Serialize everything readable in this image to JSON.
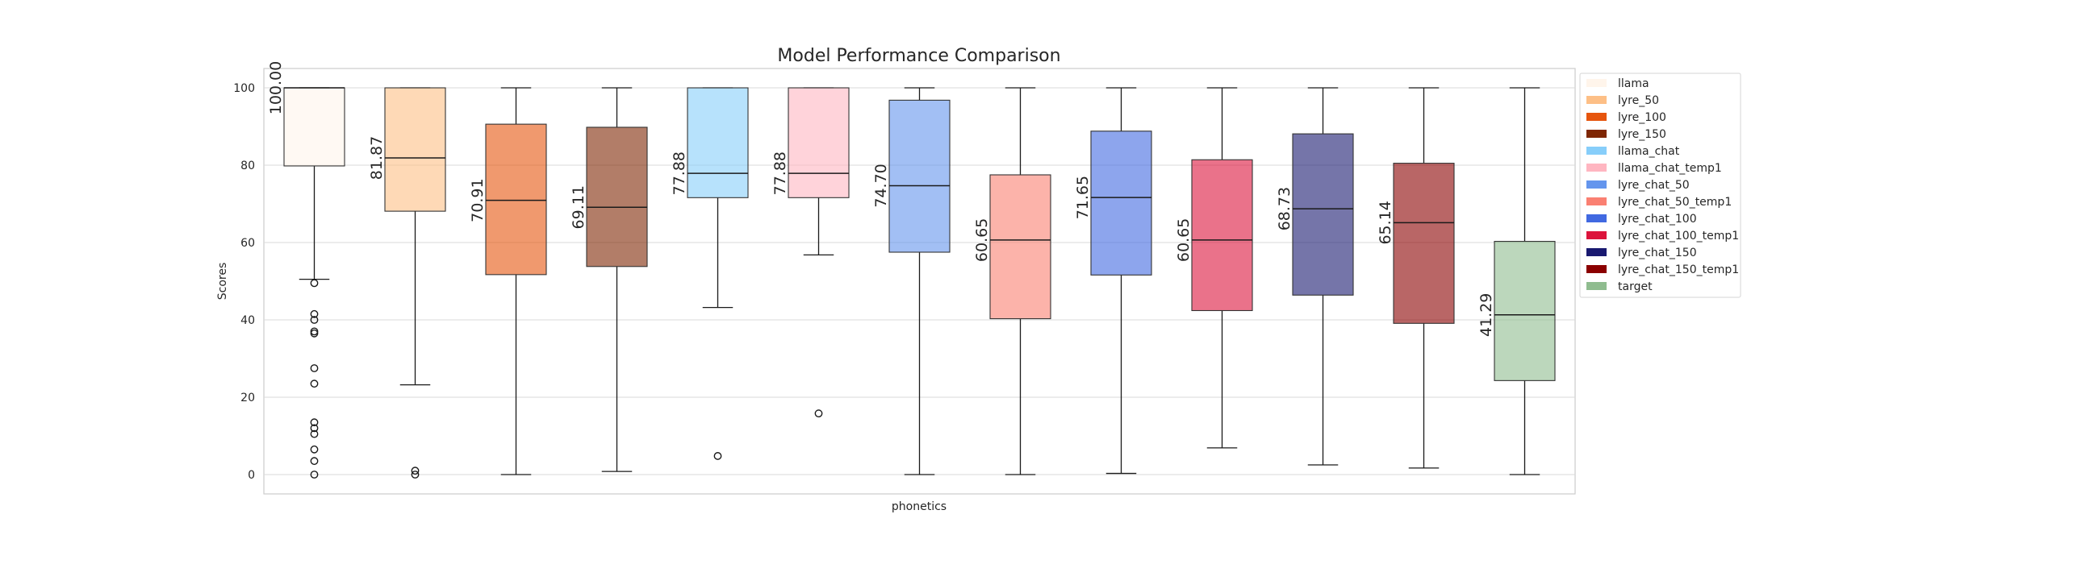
{
  "chart_data": {
    "type": "box",
    "title": "Model Performance Comparison",
    "xlabel": "phonetics",
    "ylabel": "Scores",
    "ylim": [
      -5,
      105
    ],
    "yticks": [
      0,
      20,
      40,
      60,
      80,
      100
    ],
    "grid": true,
    "legend_position": "right, outside plot",
    "series": [
      {
        "name": "llama",
        "color": "#fff5eb",
        "q1": 79.8,
        "median": 100.0,
        "q3": 100.0,
        "whisker_low": 50.5,
        "whisker_high": 100.0,
        "outliers": [
          49.5,
          41.5,
          40.0,
          37.0,
          36.5,
          27.5,
          23.5,
          13.5,
          12.0,
          10.5,
          6.5,
          3.5,
          0.0
        ],
        "label": "100.00"
      },
      {
        "name": "lyre_50",
        "color": "#fdbf86",
        "q1": 68.1,
        "median": 81.87,
        "q3": 100.0,
        "whisker_low": 23.2,
        "whisker_high": 100.0,
        "outliers": [
          1.0,
          0.0
        ],
        "label": "81.87"
      },
      {
        "name": "lyre_100",
        "color": "#e6550d",
        "q1": 51.7,
        "median": 70.91,
        "q3": 90.6,
        "whisker_low": 0.0,
        "whisker_high": 100.0,
        "outliers": [],
        "label": "70.91"
      },
      {
        "name": "lyre_150",
        "color": "#7f2704",
        "q1": 53.8,
        "median": 69.11,
        "q3": 89.8,
        "whisker_low": 0.8,
        "whisker_high": 100.0,
        "outliers": [],
        "label": "69.11"
      },
      {
        "name": "llama_chat",
        "color": "#87cefa",
        "q1": 71.6,
        "median": 77.88,
        "q3": 100.0,
        "whisker_low": 43.2,
        "whisker_high": 100.0,
        "outliers": [
          4.8
        ],
        "label": "77.88"
      },
      {
        "name": "llama_chat_temp1",
        "color": "#ffb6c1",
        "q1": 71.6,
        "median": 77.88,
        "q3": 100.0,
        "whisker_low": 56.8,
        "whisker_high": 100.0,
        "outliers": [
          15.8
        ],
        "label": "77.88"
      },
      {
        "name": "lyre_chat_50",
        "color": "#6495ed",
        "q1": 57.5,
        "median": 74.7,
        "q3": 96.8,
        "whisker_low": 0.0,
        "whisker_high": 100.0,
        "outliers": [],
        "label": "74.70"
      },
      {
        "name": "lyre_chat_50_temp1",
        "color": "#fa8072",
        "q1": 40.3,
        "median": 60.65,
        "q3": 77.5,
        "whisker_low": 0.0,
        "whisker_high": 100.0,
        "outliers": [],
        "label": "60.65"
      },
      {
        "name": "lyre_chat_100",
        "color": "#4169e1",
        "q1": 51.6,
        "median": 71.65,
        "q3": 88.8,
        "whisker_low": 0.3,
        "whisker_high": 100.0,
        "outliers": [],
        "label": "71.65"
      },
      {
        "name": "lyre_chat_100_temp1",
        "color": "#dc143c",
        "q1": 42.4,
        "median": 60.65,
        "q3": 81.4,
        "whisker_low": 6.9,
        "whisker_high": 100.0,
        "outliers": [],
        "label": "60.65"
      },
      {
        "name": "lyre_chat_150",
        "color": "#191970",
        "q1": 46.4,
        "median": 68.73,
        "q3": 88.1,
        "whisker_low": 2.5,
        "whisker_high": 100.0,
        "outliers": [],
        "label": "68.73"
      },
      {
        "name": "lyre_chat_150_temp1",
        "color": "#8b0000",
        "q1": 39.1,
        "median": 65.14,
        "q3": 80.5,
        "whisker_low": 1.7,
        "whisker_high": 100.0,
        "outliers": [],
        "label": "65.14"
      },
      {
        "name": "target",
        "color": "#8fbc8f",
        "q1": 24.3,
        "median": 41.29,
        "q3": 60.3,
        "whisker_low": 0.0,
        "whisker_high": 100.0,
        "outliers": [],
        "label": "41.29"
      }
    ]
  }
}
